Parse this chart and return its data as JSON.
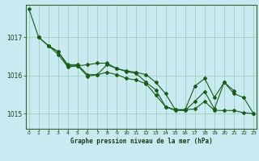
{
  "xlabel": "Graphe pression niveau de la mer (hPa)",
  "bg_color": "#c8eaf0",
  "grid_color": "#9ecfbb",
  "line_color": "#1a5c1a",
  "ylim": [
    1014.6,
    1017.85
  ],
  "yticks": [
    1015,
    1016,
    1017
  ],
  "xlim": [
    -0.3,
    23.3
  ],
  "xticks": [
    0,
    1,
    2,
    3,
    4,
    5,
    6,
    7,
    8,
    9,
    10,
    11,
    12,
    13,
    14,
    15,
    16,
    17,
    18,
    19,
    20,
    21,
    22,
    23
  ],
  "series": [
    [
      1017.75,
      1017.0,
      null,
      null,
      null,
      null,
      null,
      null,
      null,
      null,
      null,
      null,
      null,
      null,
      null,
      null,
      null,
      null,
      null,
      null,
      null,
      null,
      null,
      null
    ],
    [
      null,
      1017.0,
      1016.78,
      1016.62,
      1016.28,
      1016.28,
      1016.02,
      1016.02,
      1016.28,
      1016.18,
      1016.1,
      1016.05,
      1015.82,
      1015.62,
      1015.18,
      1015.1,
      1015.1,
      1015.72,
      1015.92,
      1015.42,
      1015.82,
      1015.6,
      null,
      null
    ],
    [
      null,
      1017.0,
      1016.78,
      1016.62,
      1016.25,
      1016.25,
      1016.28,
      1016.32,
      1016.32,
      1016.18,
      1016.12,
      1016.08,
      1016.02,
      1015.82,
      1015.52,
      1015.1,
      1015.1,
      1015.12,
      1015.32,
      1015.08,
      1015.08,
      1015.08,
      1015.02,
      1015.0
    ],
    [
      null,
      null,
      1016.78,
      1016.55,
      1016.22,
      1016.25,
      1015.98,
      1016.02,
      1016.08,
      1016.02,
      1015.92,
      1015.88,
      1015.78,
      1015.48,
      1015.18,
      1015.08,
      1015.08,
      1015.32,
      1015.58,
      1015.12,
      1015.82,
      1015.52,
      1015.42,
      1015.0
    ]
  ]
}
